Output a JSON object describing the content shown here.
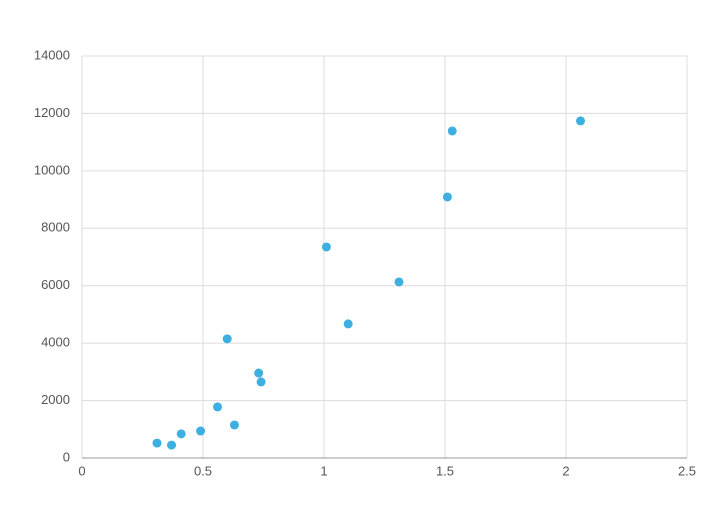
{
  "chart_data": {
    "type": "scatter",
    "x": [
      0.31,
      0.37,
      0.41,
      0.49,
      0.56,
      0.63,
      0.6,
      0.73,
      0.74,
      1.01,
      1.1,
      1.31,
      1.51,
      1.53,
      2.06
    ],
    "values": [
      520,
      450,
      840,
      940,
      1780,
      1150,
      4150,
      2960,
      2650,
      7350,
      4670,
      6130,
      9090,
      11390,
      11740
    ],
    "color": "#3dafe0",
    "xlim": [
      0,
      2.5
    ],
    "xticks": [
      0,
      0.5,
      1,
      1.5,
      2,
      2.5
    ],
    "ylim": [
      0,
      14000
    ],
    "yticks": [
      0,
      2000,
      4000,
      6000,
      8000,
      10000,
      12000,
      14000
    ],
    "grid": true
  }
}
